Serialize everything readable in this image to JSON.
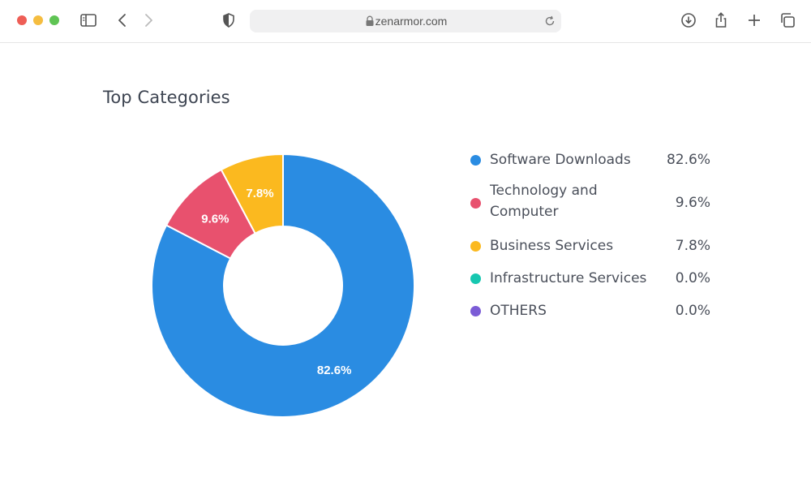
{
  "browser": {
    "url": "zenarmor.com",
    "icons": [
      "sidebar-icon",
      "back-icon",
      "forward-icon",
      "shield-icon",
      "lock-icon",
      "reload-icon",
      "download-icon",
      "share-icon",
      "new-tab-icon",
      "tabs-overview-icon"
    ]
  },
  "page": {
    "title": "Top Categories"
  },
  "chart_data": {
    "type": "pie",
    "title": "Top Categories",
    "donut": true,
    "categories": [
      "Software Downloads",
      "Technology and Computer",
      "Business Services",
      "Infrastructure Services",
      "OTHERS"
    ],
    "values": [
      82.6,
      9.6,
      7.8,
      0.0,
      0.0
    ],
    "value_labels": [
      "82.6%",
      "9.6%",
      "7.8%",
      "0.0%",
      "0.0%"
    ],
    "colors": [
      "#2a8ce2",
      "#e8516e",
      "#fbb91f",
      "#16c7b0",
      "#7b5cd6"
    ],
    "legend": "right"
  }
}
